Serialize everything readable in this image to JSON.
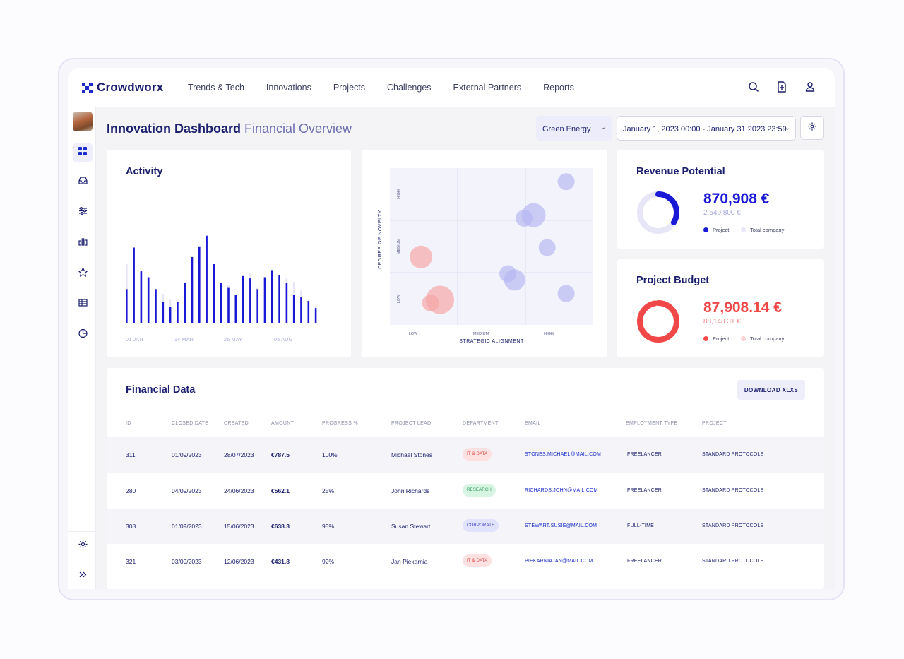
{
  "app": {
    "name": "Crowdworx"
  },
  "nav": {
    "items": [
      "Trends & Tech",
      "Innovations",
      "Projects",
      "Challenges",
      "External Partners",
      "Reports"
    ]
  },
  "page": {
    "title": "Innovation Dashboard",
    "subtitle": "Financial Overview"
  },
  "filters": {
    "category": "Green Energy",
    "date_range": "January 1, 2023 00:00 - January 31 2023 23:59"
  },
  "activity": {
    "title": "Activity"
  },
  "revenue": {
    "title": "Revenue Potential",
    "value": "870,908 €",
    "total": "2,540,800 €",
    "legend_project": "Project",
    "legend_total": "Total company",
    "color": "#1a1ad6",
    "fraction": 0.34
  },
  "budget": {
    "title": "Project Budget",
    "value": "87,908.14 €",
    "total": "88,148.31 €",
    "legend_project": "Project",
    "legend_total": "Total company",
    "color": "#f04848",
    "fraction": 0.997
  },
  "financial": {
    "title": "Financial Data",
    "download_label": "DOWNLOAD XLXS",
    "columns": [
      "ID",
      "CLOSED DATE",
      "CREATED",
      "AMOUNT",
      "PROGRESS %",
      "PROJECT LEAD",
      "DEPARTMENT",
      "EMAIL",
      "EMPLOYMENT TYPE",
      "PROJECT"
    ],
    "rows": [
      {
        "id": "311",
        "closed": "01/09/2023",
        "created": "28/07/2023",
        "amount": "€787.5",
        "progress": "100%",
        "lead": "Michael Stones",
        "department": "IT & DATA",
        "email": "STONES.MICHAEL@MAIL.COM",
        "employment": "FREELANCER",
        "project": "STANDARD PROTOCOLS"
      },
      {
        "id": "280",
        "closed": "04/09/2023",
        "created": "24/06/2023",
        "amount": "€562.1",
        "progress": "25%",
        "lead": "John Richards",
        "department": "RESEARCH",
        "email": "RICHARDS.JOHN@MAIL.COM",
        "employment": "FREELANCER",
        "project": "STANDARD PROTOCOLS"
      },
      {
        "id": "308",
        "closed": "01/09/2023",
        "created": "15/06/2023",
        "amount": "€638.3",
        "progress": "95%",
        "lead": "Susan Stewart",
        "department": "CORPORATE",
        "email": "STEWART.SUSIE@MAIL.COM",
        "employment": "FULL-TIME",
        "project": "STANDARD PROTOCOLS"
      },
      {
        "id": "321",
        "closed": "03/09/2023",
        "created": "12/06/2023",
        "amount": "€431.8",
        "progress": "92%",
        "lead": "Jan Piekarnia",
        "department": "IT & DATA",
        "email": "PIEKARNIAJAN@MAIL.COM",
        "employment": "FREELANCER",
        "project": "STANDARD PROTOCOLS"
      }
    ]
  },
  "chart_data": [
    {
      "type": "bar",
      "title": "Activity",
      "x_tick_labels": [
        "01 JAN",
        "14 MAR",
        "26 MAY",
        "05 AUG"
      ],
      "series": [
        {
          "values": [
            50,
            56,
            40,
            37,
            22,
            25,
            20,
            20,
            35,
            37,
            60,
            58,
            50,
            30,
            32,
            22,
            35,
            42,
            30,
            38,
            37,
            30,
            38,
            35,
            28,
            20,
            15
          ]
        },
        {
          "values": [
            29,
            64,
            44,
            39,
            29,
            18,
            14,
            18,
            34,
            56,
            65,
            74,
            50,
            34,
            30,
            24,
            40,
            38,
            29,
            39,
            45,
            41,
            34,
            24,
            22,
            19,
            13
          ]
        }
      ],
      "colors": [
        "#e6e6f7",
        "#1a1ad6"
      ]
    },
    {
      "type": "scatter",
      "xlabel": "STRATEGIC ALIGNMENT",
      "ylabel": "DEGREE OF NOVELTY",
      "x_tick_labels": [
        "LOW",
        "MEDIUM",
        "HIGH"
      ],
      "y_tick_labels": [
        "LOW",
        "MEDIUM",
        "HIGH"
      ],
      "points": [
        {
          "x": 0.46,
          "y": 1.3,
          "size": 16,
          "group": "low"
        },
        {
          "x": 0.74,
          "y": 0.48,
          "size": 20,
          "group": "low"
        },
        {
          "x": 0.6,
          "y": 0.42,
          "size": 12,
          "group": "low"
        },
        {
          "x": 2.6,
          "y": 2.74,
          "size": 12,
          "group": "high"
        },
        {
          "x": 2.12,
          "y": 2.1,
          "size": 17,
          "group": "high"
        },
        {
          "x": 1.98,
          "y": 2.04,
          "size": 12,
          "group": "high"
        },
        {
          "x": 2.32,
          "y": 1.48,
          "size": 12,
          "group": "high"
        },
        {
          "x": 1.74,
          "y": 0.98,
          "size": 12,
          "group": "high"
        },
        {
          "x": 1.84,
          "y": 0.86,
          "size": 15,
          "group": "high"
        },
        {
          "x": 2.6,
          "y": 0.6,
          "size": 12,
          "group": "high"
        }
      ],
      "colors": {
        "low": "#f6a3a3",
        "high": "#b3b5f1"
      }
    }
  ]
}
